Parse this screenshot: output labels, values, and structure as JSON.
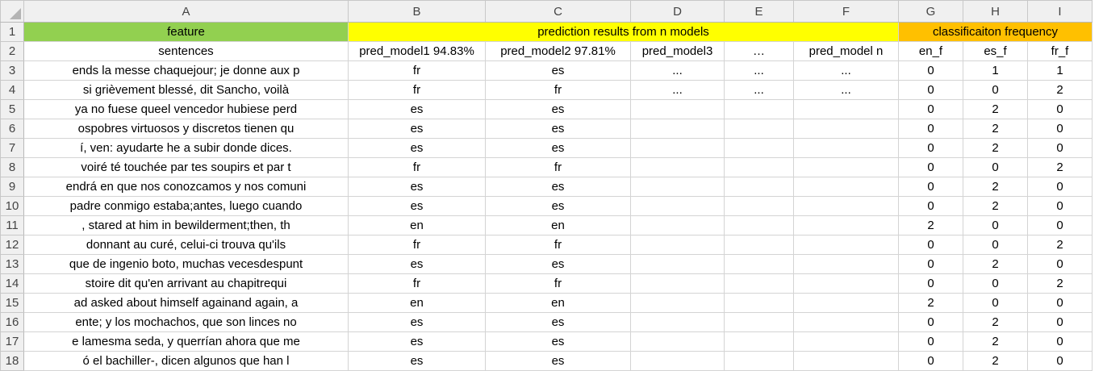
{
  "columns": [
    "A",
    "B",
    "C",
    "D",
    "E",
    "F",
    "G",
    "H",
    "I"
  ],
  "header": {
    "feature": "feature",
    "prediction": "prediction results from n models",
    "frequency": "classificaiton frequency",
    "colors": {
      "green": "#92d050",
      "yellow": "#ffff00",
      "orange": "#ffc000"
    }
  },
  "subheader": [
    "sentences",
    "pred_model1 94.83%",
    "pred_model2  97.81%",
    "pred_model3",
    "…",
    "pred_model n",
    "en_f",
    "es_f",
    "fr_f"
  ],
  "rows": [
    {
      "n": "3",
      "cells": [
        "ends la messe chaquejour; je donne aux p",
        "fr",
        "es",
        "...",
        "...",
        "...",
        "0",
        "1",
        "1"
      ]
    },
    {
      "n": "4",
      "cells": [
        "si grièvement blessé, dit Sancho, voilà",
        "fr",
        "fr",
        "...",
        "...",
        "...",
        "0",
        "0",
        "2"
      ]
    },
    {
      "n": "5",
      "cells": [
        "ya no fuese queel vencedor hubiese perd",
        "es",
        "es",
        "",
        "",
        "",
        "0",
        "2",
        "0"
      ]
    },
    {
      "n": "6",
      "cells": [
        "ospobres virtuosos y discretos tienen qu",
        "es",
        "es",
        "",
        "",
        "",
        "0",
        "2",
        "0"
      ]
    },
    {
      "n": "7",
      "cells": [
        "í, ven: ayudarte he a subir donde dices.",
        "es",
        "es",
        "",
        "",
        "",
        "0",
        "2",
        "0"
      ]
    },
    {
      "n": "8",
      "cells": [
        "voiré té touchée par tes soupirs et par t",
        "fr",
        "fr",
        "",
        "",
        "",
        "0",
        "0",
        "2"
      ]
    },
    {
      "n": "9",
      "cells": [
        "endrá en que nos conozcamos y nos comuni",
        "es",
        "es",
        "",
        "",
        "",
        "0",
        "2",
        "0"
      ]
    },
    {
      "n": "10",
      "cells": [
        "padre conmigo estaba;antes, luego cuando",
        "es",
        "es",
        "",
        "",
        "",
        "0",
        "2",
        "0"
      ]
    },
    {
      "n": "11",
      "cells": [
        ", stared at him in bewilderment;then, th",
        "en",
        "en",
        "",
        "",
        "",
        "2",
        "0",
        "0"
      ]
    },
    {
      "n": "12",
      "cells": [
        "donnant au curé, celui-ci trouva qu'ils",
        "fr",
        "fr",
        "",
        "",
        "",
        "0",
        "0",
        "2"
      ]
    },
    {
      "n": "13",
      "cells": [
        "que de ingenio boto, muchas vecesdespunt",
        "es",
        "es",
        "",
        "",
        "",
        "0",
        "2",
        "0"
      ]
    },
    {
      "n": "14",
      "cells": [
        "stoire dit qu'en arrivant au chapitrequi",
        "fr",
        "fr",
        "",
        "",
        "",
        "0",
        "0",
        "2"
      ]
    },
    {
      "n": "15",
      "cells": [
        "ad asked about himself againand again, a",
        "en",
        "en",
        "",
        "",
        "",
        "2",
        "0",
        "0"
      ]
    },
    {
      "n": "16",
      "cells": [
        "ente; y los mochachos, que son linces no",
        "es",
        "es",
        "",
        "",
        "",
        "0",
        "2",
        "0"
      ]
    },
    {
      "n": "17",
      "cells": [
        "e lamesma seda, y querrían ahora que me",
        "es",
        "es",
        "",
        "",
        "",
        "0",
        "2",
        "0"
      ]
    },
    {
      "n": "18",
      "cells": [
        "ó el bachiller-, dicen algunos que han l",
        "es",
        "es",
        "",
        "",
        "",
        "0",
        "2",
        "0"
      ]
    }
  ]
}
